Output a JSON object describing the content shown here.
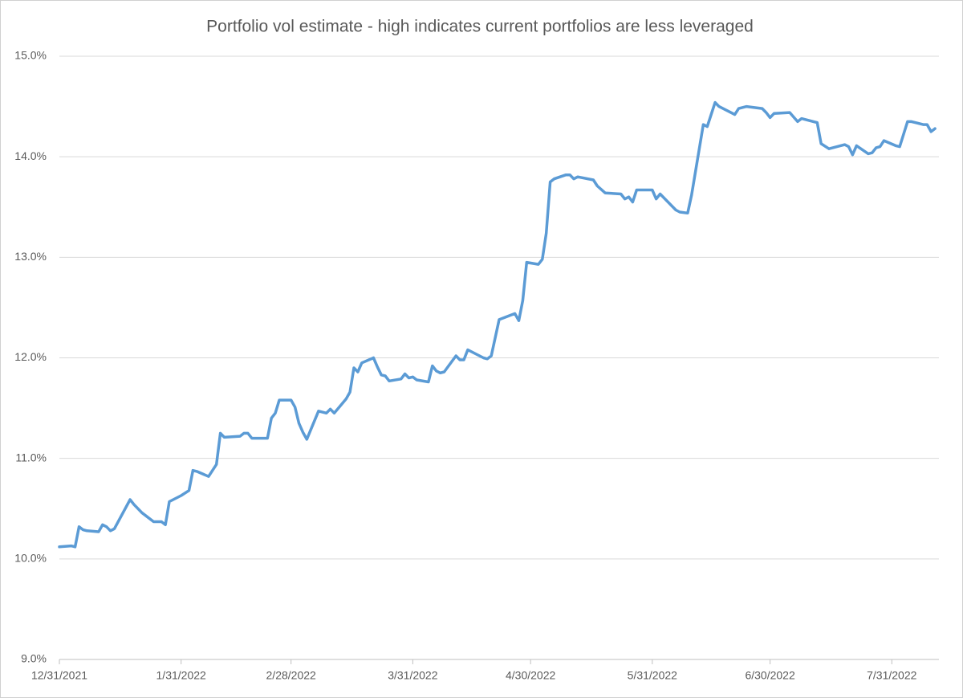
{
  "chart_data": {
    "type": "line",
    "title": "Portfolio vol estimate -   high indicates current portfolios are less leveraged",
    "color": "#5b9bd5",
    "x": [
      "12/31/2021",
      "1/3/2022",
      "1/4/2022",
      "1/5/2022",
      "1/6/2022",
      "1/7/2022",
      "1/10/2022",
      "1/11/2022",
      "1/12/2022",
      "1/13/2022",
      "1/14/2022",
      "1/18/2022",
      "1/19/2022",
      "1/21/2022",
      "1/24/2022",
      "1/26/2022",
      "1/27/2022",
      "1/28/2022",
      "1/31/2022",
      "2/2/2022",
      "2/3/2022",
      "2/4/2022",
      "2/7/2022",
      "2/9/2022",
      "2/10/2022",
      "2/11/2022",
      "2/15/2022",
      "2/16/2022",
      "2/17/2022",
      "2/18/2022",
      "2/22/2022",
      "2/23/2022",
      "2/24/2022",
      "2/25/2022",
      "2/28/2022",
      "3/1/2022",
      "3/2/2022",
      "3/3/2022",
      "3/4/2022",
      "3/7/2022",
      "3/9/2022",
      "3/10/2022",
      "3/11/2022",
      "3/14/2022",
      "3/15/2022",
      "3/16/2022",
      "3/17/2022",
      "3/18/2022",
      "3/21/2022",
      "3/22/2022",
      "3/23/2022",
      "3/24/2022",
      "3/25/2022",
      "3/28/2022",
      "3/29/2022",
      "3/30/2022",
      "3/31/2022",
      "4/1/2022",
      "4/4/2022",
      "4/5/2022",
      "4/6/2022",
      "4/7/2022",
      "4/8/2022",
      "4/11/2022",
      "4/12/2022",
      "4/13/2022",
      "4/14/2022",
      "4/18/2022",
      "4/19/2022",
      "4/20/2022",
      "4/22/2022",
      "4/26/2022",
      "4/27/2022",
      "4/28/2022",
      "4/29/2022",
      "5/2/2022",
      "5/3/2022",
      "5/4/2022",
      "5/5/2022",
      "5/6/2022",
      "5/9/2022",
      "5/10/2022",
      "5/11/2022",
      "5/12/2022",
      "5/16/2022",
      "5/17/2022",
      "5/19/2022",
      "5/23/2022",
      "5/24/2022",
      "5/25/2022",
      "5/26/2022",
      "5/27/2022",
      "5/31/2022",
      "6/1/2022",
      "6/2/2022",
      "6/6/2022",
      "6/7/2022",
      "6/9/2022",
      "6/10/2022",
      "6/13/2022",
      "6/14/2022",
      "6/15/2022",
      "6/16/2022",
      "6/17/2022",
      "6/21/2022",
      "6/22/2022",
      "6/24/2022",
      "6/28/2022",
      "6/29/2022",
      "6/30/2022",
      "7/1/2022",
      "7/5/2022",
      "7/7/2022",
      "7/8/2022",
      "7/12/2022",
      "7/13/2022",
      "7/15/2022",
      "7/19/2022",
      "7/20/2022",
      "7/21/2022",
      "7/22/2022",
      "7/25/2022",
      "7/26/2022",
      "7/27/2022",
      "7/28/2022",
      "7/29/2022",
      "8/1/2022",
      "8/2/2022",
      "8/4/2022",
      "8/5/2022",
      "8/8/2022",
      "8/9/2022",
      "8/10/2022",
      "8/11/2022"
    ],
    "values": [
      10.12,
      10.13,
      10.12,
      10.32,
      10.29,
      10.28,
      10.27,
      10.34,
      10.32,
      10.28,
      10.3,
      10.59,
      10.54,
      10.46,
      10.37,
      10.37,
      10.34,
      10.57,
      10.63,
      10.68,
      10.88,
      10.87,
      10.82,
      10.94,
      11.25,
      11.21,
      11.22,
      11.25,
      11.25,
      11.2,
      11.2,
      11.4,
      11.45,
      11.58,
      11.58,
      11.51,
      11.35,
      11.26,
      11.19,
      11.47,
      11.45,
      11.49,
      11.45,
      11.59,
      11.66,
      11.9,
      11.86,
      11.95,
      12.0,
      11.91,
      11.83,
      11.82,
      11.77,
      11.79,
      11.84,
      11.8,
      11.81,
      11.78,
      11.76,
      11.92,
      11.87,
      11.85,
      11.86,
      12.02,
      11.98,
      11.98,
      12.08,
      12.0,
      11.99,
      12.02,
      12.38,
      12.44,
      12.37,
      12.57,
      12.95,
      12.93,
      12.98,
      13.24,
      13.75,
      13.78,
      13.82,
      13.82,
      13.78,
      13.8,
      13.77,
      13.71,
      13.64,
      13.63,
      13.58,
      13.6,
      13.55,
      13.67,
      13.67,
      13.58,
      13.63,
      13.47,
      13.45,
      13.44,
      13.62,
      14.32,
      14.3,
      14.42,
      14.54,
      14.5,
      14.42,
      14.48,
      14.5,
      14.48,
      14.44,
      14.39,
      14.43,
      14.44,
      14.35,
      14.38,
      14.34,
      14.13,
      14.08,
      14.12,
      14.1,
      14.02,
      14.11,
      14.03,
      14.04,
      14.09,
      14.1,
      14.16,
      14.11,
      14.1,
      14.35,
      14.35,
      14.32,
      14.32,
      14.25,
      14.28
    ],
    "xlim": [
      "12/31/2021",
      "8/12/2022"
    ],
    "xticks": [
      "12/31/2021",
      "1/31/2022",
      "2/28/2022",
      "3/31/2022",
      "4/30/2022",
      "5/31/2022",
      "6/30/2022",
      "7/31/2022"
    ],
    "ylim": [
      9,
      15
    ],
    "yticks": [
      {
        "value": 9,
        "label": "9.0%"
      },
      {
        "value": 10,
        "label": "10.0%"
      },
      {
        "value": 11,
        "label": "11.0%"
      },
      {
        "value": 12,
        "label": "12.0%"
      },
      {
        "value": 13,
        "label": "13.0%"
      },
      {
        "value": 14,
        "label": "14.0%"
      },
      {
        "value": 15,
        "label": "15.0%"
      }
    ],
    "grid": true
  }
}
